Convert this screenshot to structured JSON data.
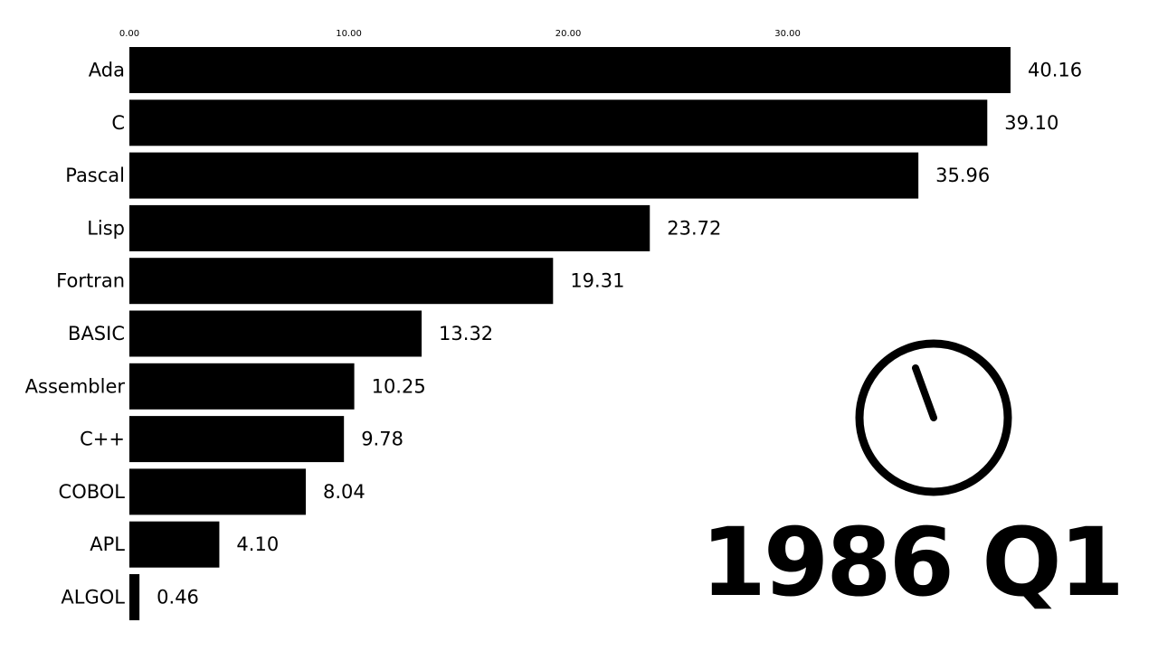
{
  "chart_data": {
    "type": "bar",
    "orientation": "horizontal",
    "categories": [
      "Ada",
      "C",
      "Pascal",
      "Lisp",
      "Fortran",
      "BASIC",
      "Assembler",
      "C++",
      "COBOL",
      "APL",
      "ALGOL"
    ],
    "values": [
      40.16,
      39.1,
      35.96,
      23.72,
      19.31,
      13.32,
      10.25,
      9.78,
      8.04,
      4.1,
      0.46
    ],
    "value_labels": [
      "40.16",
      "39.10",
      "35.96",
      "23.72",
      "19.31",
      "13.32",
      "10.25",
      "9.78",
      "8.04",
      "4.10",
      "0.46"
    ],
    "x_ticks": [
      0,
      10,
      20,
      30
    ],
    "x_tick_labels": [
      "0.00",
      "10.00",
      "20.00",
      "30.00"
    ],
    "xlim": [
      0,
      40.16
    ],
    "bar_color": "#000000",
    "grid": false,
    "period_label": "1986 Q1",
    "clock_hand_fraction": 0.04
  }
}
